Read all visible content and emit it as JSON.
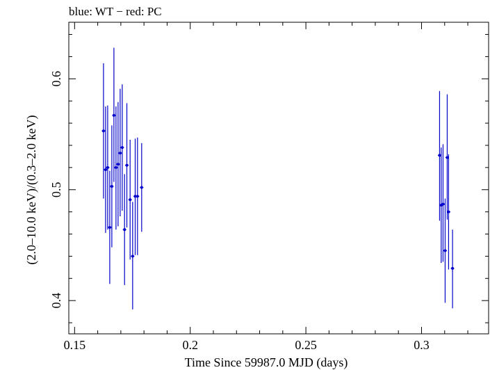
{
  "chart_data": {
    "type": "scatter",
    "title": "blue: WT − red: PC",
    "xlabel": "Time Since 59987.0 MJD (days)",
    "ylabel": "(2.0–10.0 keV)/(0.3–2.0 keV)",
    "xlim": [
      0.1475,
      0.329
    ],
    "ylim": [
      0.37,
      0.651
    ],
    "xticks": [
      0.15,
      0.2,
      0.25,
      0.3
    ],
    "xtick_labels": [
      "0.15",
      "0.2",
      "0.25",
      "0.3"
    ],
    "yticks": [
      0.4,
      0.5,
      0.6
    ],
    "ytick_labels": [
      "0.4",
      "0.5",
      "0.6"
    ],
    "grid": false,
    "colors": {
      "WT": "#0000cc",
      "frame": "#000000"
    },
    "series": [
      {
        "name": "WT",
        "points": [
          {
            "x": 0.1625,
            "y": 0.553,
            "ylo": 0.492,
            "yhi": 0.614
          },
          {
            "x": 0.1634,
            "y": 0.518,
            "ylo": 0.461,
            "yhi": 0.575
          },
          {
            "x": 0.1643,
            "y": 0.52,
            "ylo": 0.464,
            "yhi": 0.576
          },
          {
            "x": 0.1652,
            "y": 0.466,
            "ylo": 0.415,
            "yhi": 0.517
          },
          {
            "x": 0.1661,
            "y": 0.503,
            "ylo": 0.448,
            "yhi": 0.558
          },
          {
            "x": 0.167,
            "y": 0.567,
            "ylo": 0.507,
            "yhi": 0.628
          },
          {
            "x": 0.1679,
            "y": 0.52,
            "ylo": 0.464,
            "yhi": 0.575
          },
          {
            "x": 0.1688,
            "y": 0.523,
            "ylo": 0.467,
            "yhi": 0.579
          },
          {
            "x": 0.1697,
            "y": 0.533,
            "ylo": 0.476,
            "yhi": 0.591
          },
          {
            "x": 0.1706,
            "y": 0.538,
            "ylo": 0.481,
            "yhi": 0.595
          },
          {
            "x": 0.1716,
            "y": 0.464,
            "ylo": 0.414,
            "yhi": 0.514
          },
          {
            "x": 0.1726,
            "y": 0.522,
            "ylo": 0.466,
            "yhi": 0.578
          },
          {
            "x": 0.174,
            "y": 0.491,
            "ylo": 0.437,
            "yhi": 0.545
          },
          {
            "x": 0.1751,
            "y": 0.44,
            "ylo": 0.392,
            "yhi": 0.489
          },
          {
            "x": 0.1762,
            "y": 0.494,
            "ylo": 0.441,
            "yhi": 0.546
          },
          {
            "x": 0.1772,
            "y": 0.494,
            "ylo": 0.441,
            "yhi": 0.547
          },
          {
            "x": 0.179,
            "y": 0.502,
            "ylo": 0.462,
            "yhi": 0.542
          },
          {
            "x": 0.3078,
            "y": 0.531,
            "ylo": 0.472,
            "yhi": 0.589
          },
          {
            "x": 0.3085,
            "y": 0.486,
            "ylo": 0.434,
            "yhi": 0.538
          },
          {
            "x": 0.3093,
            "y": 0.487,
            "ylo": 0.435,
            "yhi": 0.541
          },
          {
            "x": 0.3102,
            "y": 0.445,
            "ylo": 0.398,
            "yhi": 0.492
          },
          {
            "x": 0.3111,
            "y": 0.529,
            "ylo": 0.473,
            "yhi": 0.586
          },
          {
            "x": 0.3117,
            "y": 0.48,
            "ylo": 0.428,
            "yhi": 0.532
          },
          {
            "x": 0.3134,
            "y": 0.429,
            "ylo": 0.393,
            "yhi": 0.464
          }
        ]
      }
    ]
  }
}
